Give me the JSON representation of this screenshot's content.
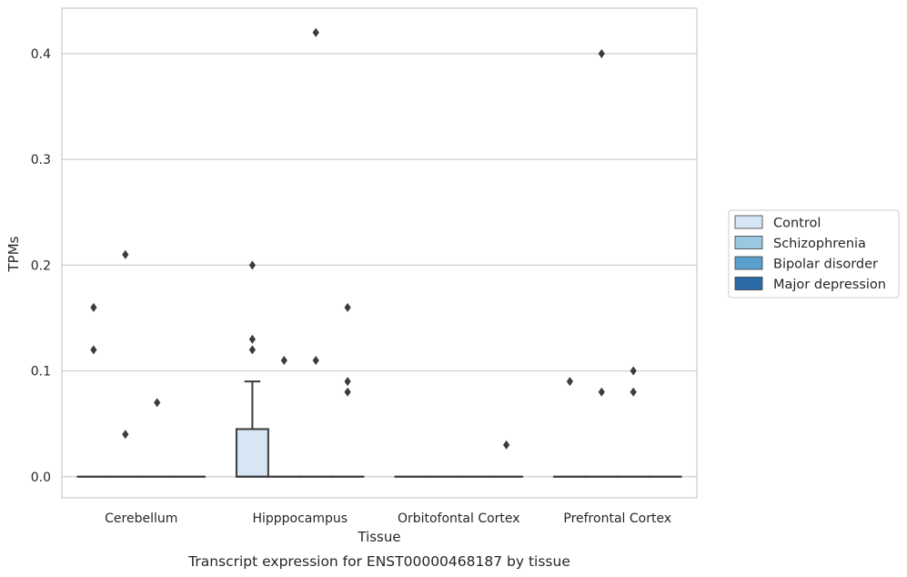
{
  "chart_data": {
    "type": "box",
    "xlabel": "Tissue",
    "ylabel": "TPMs",
    "caption": "Transcript expression for ENST00000468187 by tissue",
    "ylim": [
      -0.02,
      0.443
    ],
    "yticks": [
      0.0,
      0.1,
      0.2,
      0.3,
      0.4
    ],
    "ytick_labels": [
      "0.0",
      "0.1",
      "0.2",
      "0.3",
      "0.4"
    ],
    "grid": "horizontal",
    "legend_position": "right",
    "categories": [
      "Cerebellum",
      "Hipppocampus",
      "Orbitofontal Cortex",
      "Prefrontal Cortex"
    ],
    "series": [
      {
        "name": "Control",
        "color": "#d6e6f4",
        "boxes": [
          {
            "q1": 0.0,
            "median": 0.0,
            "q3": 0.0,
            "whisker_low": 0.0,
            "whisker_high": 0.0,
            "outliers": [
              0.16,
              0.12
            ]
          },
          {
            "q1": 0.0,
            "median": 0.0,
            "q3": 0.045,
            "whisker_low": 0.0,
            "whisker_high": 0.09,
            "outliers": [
              0.2,
              0.13,
              0.12
            ]
          },
          {
            "q1": 0.0,
            "median": 0.0,
            "q3": 0.0,
            "whisker_low": 0.0,
            "whisker_high": 0.0,
            "outliers": []
          },
          {
            "q1": 0.0,
            "median": 0.0,
            "q3": 0.0,
            "whisker_low": 0.0,
            "whisker_high": 0.0,
            "outliers": [
              0.09
            ]
          }
        ]
      },
      {
        "name": "Schizophrenia",
        "color": "#9ac8e0",
        "boxes": [
          {
            "q1": 0.0,
            "median": 0.0,
            "q3": 0.0,
            "whisker_low": 0.0,
            "whisker_high": 0.0,
            "outliers": [
              0.21,
              0.04
            ]
          },
          {
            "q1": 0.0,
            "median": 0.0,
            "q3": 0.0,
            "whisker_low": 0.0,
            "whisker_high": 0.0,
            "outliers": [
              0.11
            ]
          },
          {
            "q1": 0.0,
            "median": 0.0,
            "q3": 0.0,
            "whisker_low": 0.0,
            "whisker_high": 0.0,
            "outliers": []
          },
          {
            "q1": 0.0,
            "median": 0.0,
            "q3": 0.0,
            "whisker_low": 0.0,
            "whisker_high": 0.0,
            "outliers": [
              0.4,
              0.08
            ]
          }
        ]
      },
      {
        "name": "Bipolar disorder",
        "color": "#5aa0cd",
        "boxes": [
          {
            "q1": 0.0,
            "median": 0.0,
            "q3": 0.0,
            "whisker_low": 0.0,
            "whisker_high": 0.0,
            "outliers": [
              0.07
            ]
          },
          {
            "q1": 0.0,
            "median": 0.0,
            "q3": 0.0,
            "whisker_low": 0.0,
            "whisker_high": 0.0,
            "outliers": [
              0.42,
              0.11
            ]
          },
          {
            "q1": 0.0,
            "median": 0.0,
            "q3": 0.0,
            "whisker_low": 0.0,
            "whisker_high": 0.0,
            "outliers": []
          },
          {
            "q1": 0.0,
            "median": 0.0,
            "q3": 0.0,
            "whisker_low": 0.0,
            "whisker_high": 0.0,
            "outliers": [
              0.1,
              0.08
            ]
          }
        ]
      },
      {
        "name": "Major depression",
        "color": "#2b6ca8",
        "boxes": [
          {
            "q1": 0.0,
            "median": 0.0,
            "q3": 0.0,
            "whisker_low": 0.0,
            "whisker_high": 0.0,
            "outliers": []
          },
          {
            "q1": 0.0,
            "median": 0.0,
            "q3": 0.0,
            "whisker_low": 0.0,
            "whisker_high": 0.0,
            "outliers": [
              0.16,
              0.09,
              0.08
            ]
          },
          {
            "q1": 0.0,
            "median": 0.0,
            "q3": 0.0,
            "whisker_low": 0.0,
            "whisker_high": 0.0,
            "outliers": [
              0.03
            ]
          },
          {
            "q1": 0.0,
            "median": 0.0,
            "q3": 0.0,
            "whisker_low": 0.0,
            "whisker_high": 0.0,
            "outliers": []
          }
        ]
      }
    ]
  }
}
